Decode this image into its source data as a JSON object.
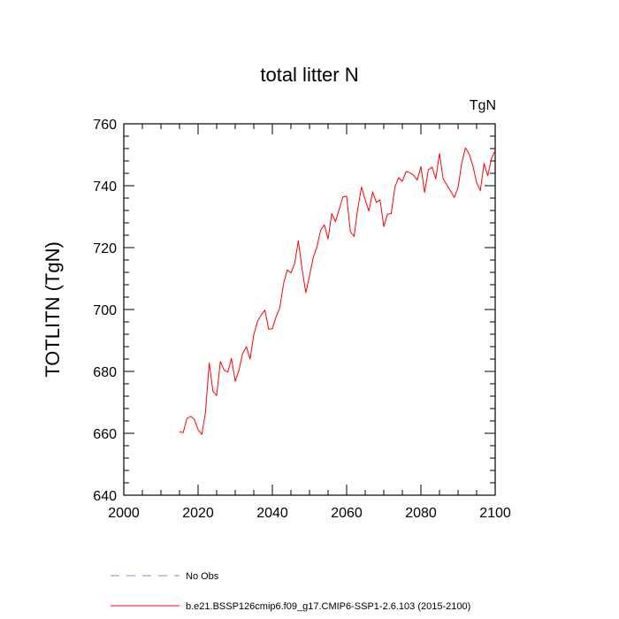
{
  "chart_data": {
    "type": "line",
    "title": "total litter N",
    "units": "TgN",
    "ylabel": "TOTLITN  (TgN)",
    "xlabel": "",
    "xlim": [
      2000,
      2100
    ],
    "ylim": [
      640,
      760
    ],
    "x_ticks": [
      2000,
      2020,
      2040,
      2060,
      2080,
      2100
    ],
    "x_tick_labels": [
      "2000",
      "2020",
      "2040",
      "2060",
      "2080",
      "2100"
    ],
    "y_ticks": [
      640,
      660,
      680,
      700,
      720,
      740,
      760
    ],
    "y_tick_labels": [
      "640",
      "660",
      "680",
      "700",
      "720",
      "740",
      "760"
    ],
    "series": [
      {
        "name": "b.e21.BSSP126cmip6.f09_g17.CMIP6-SSP1-2.6.103 (2015-2100)",
        "color": "#ff0000",
        "style": "solid",
        "x": [
          2015,
          2016,
          2017,
          2018,
          2019,
          2020,
          2021,
          2022,
          2023,
          2024,
          2025,
          2026,
          2027,
          2028,
          2029,
          2030,
          2031,
          2032,
          2033,
          2034,
          2035,
          2036,
          2037,
          2038,
          2039,
          2040,
          2041,
          2042,
          2043,
          2044,
          2045,
          2046,
          2047,
          2048,
          2049,
          2050,
          2051,
          2052,
          2053,
          2054,
          2055,
          2056,
          2057,
          2058,
          2059,
          2060,
          2061,
          2062,
          2063,
          2064,
          2065,
          2066,
          2067,
          2068,
          2069,
          2070,
          2071,
          2072,
          2073,
          2074,
          2075,
          2076,
          2077,
          2078,
          2079,
          2080,
          2081,
          2082,
          2083,
          2084,
          2085,
          2086,
          2087,
          2088,
          2089,
          2090,
          2091,
          2092,
          2093,
          2094,
          2095,
          2096,
          2097,
          2098,
          2099,
          2100
        ],
        "values": [
          660.5,
          660.2,
          664.8,
          665.5,
          664.5,
          661.2,
          659.6,
          666.8,
          682.8,
          673.6,
          672.2,
          683.2,
          680.4,
          679.8,
          684.2,
          676.8,
          680.4,
          685.8,
          688.0,
          684.0,
          691.8,
          696.2,
          698.2,
          699.8,
          693.6,
          693.8,
          697.6,
          700.6,
          708.2,
          712.8,
          711.8,
          714.8,
          722.2,
          713.2,
          705.4,
          710.8,
          716.8,
          720.2,
          725.6,
          727.4,
          722.8,
          731.0,
          728.4,
          732.4,
          736.4,
          736.6,
          725.2,
          723.6,
          732.6,
          739.6,
          735.4,
          731.8,
          738.0,
          734.6,
          735.4,
          726.8,
          730.8,
          731.0,
          739.6,
          742.6,
          741.4,
          744.6,
          744.2,
          743.4,
          741.8,
          746.2,
          737.8,
          745.2,
          746.0,
          742.2,
          750.4,
          742.2,
          740.2,
          738.2,
          736.2,
          739.4,
          747.4,
          752.2,
          750.2,
          746.4,
          741.0,
          738.4,
          747.2,
          743.2,
          748.8,
          751.4
        ]
      },
      {
        "name": "No Obs",
        "color": "#8a8aee",
        "style": "dashed",
        "x": [],
        "values": []
      }
    ],
    "legend_position": "bottom-left"
  }
}
